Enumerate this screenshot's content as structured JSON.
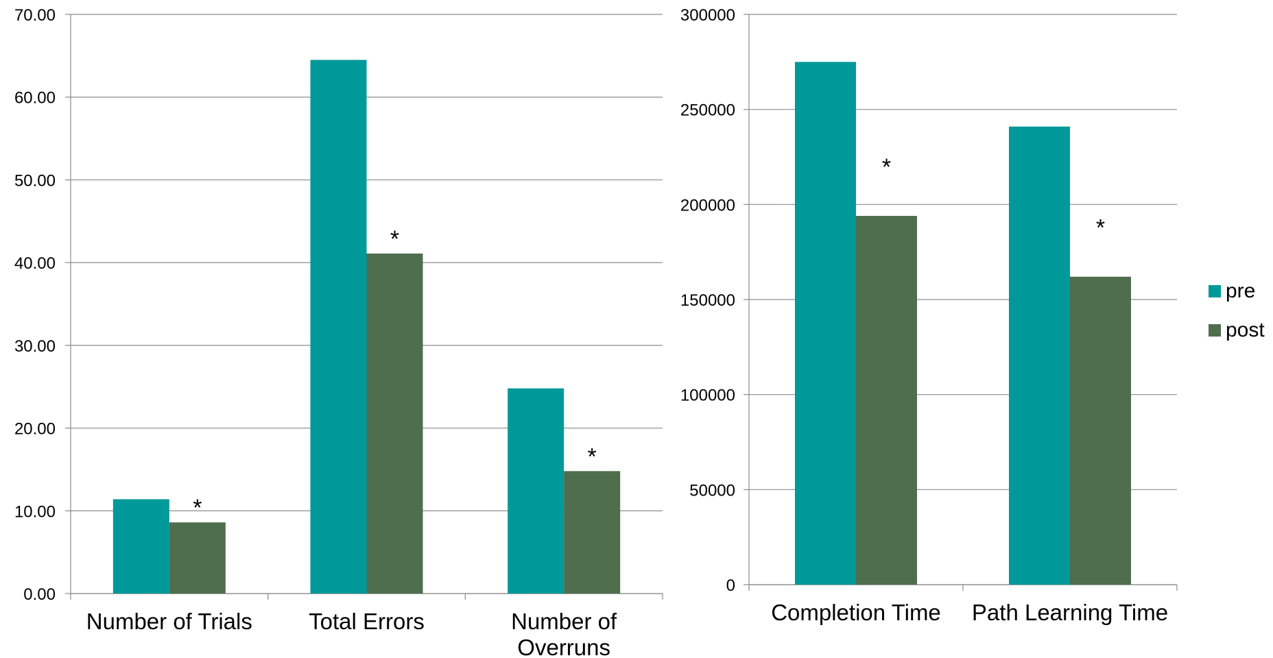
{
  "legend": {
    "position": "right",
    "items": [
      {
        "name": "pre",
        "color": "#009999"
      },
      {
        "name": "post",
        "color": "#4E6E4E"
      }
    ]
  },
  "chart_data": [
    {
      "type": "bar",
      "title": "",
      "xlabel": "",
      "ylabel": "",
      "ylim": [
        0,
        70
      ],
      "yticks": [
        0,
        10,
        20,
        30,
        40,
        50,
        60,
        70
      ],
      "ytick_labels": [
        "0.00",
        "10.00",
        "20.00",
        "30.00",
        "40.00",
        "50.00",
        "60.00",
        "70.00"
      ],
      "grid": true,
      "categories": [
        "Number of Trials",
        "Total Errors",
        "Number of Overruns"
      ],
      "category_lines": [
        [
          "Number of Trials"
        ],
        [
          "Total Errors"
        ],
        [
          "Number of",
          "Overruns"
        ]
      ],
      "series": [
        {
          "name": "pre",
          "color": "#009999",
          "values": [
            11.4,
            64.5,
            24.8
          ]
        },
        {
          "name": "post",
          "color": "#4E6E4E",
          "values": [
            8.6,
            41.1,
            14.8
          ]
        }
      ],
      "annotations": [
        {
          "text": "*",
          "category": "Number of Trials",
          "series": "post"
        },
        {
          "text": "*",
          "category": "Total Errors",
          "series": "post"
        },
        {
          "text": "*",
          "category": "Number of Overruns",
          "series": "post"
        }
      ]
    },
    {
      "type": "bar",
      "title": "",
      "xlabel": "",
      "ylabel": "",
      "ylim": [
        0,
        300000
      ],
      "yticks": [
        0,
        50000,
        100000,
        150000,
        200000,
        250000,
        300000
      ],
      "ytick_labels": [
        "0",
        "50000",
        "100000",
        "150000",
        "200000",
        "250000",
        "300000"
      ],
      "grid": true,
      "categories": [
        "Completion Time",
        "Path Learning Time"
      ],
      "category_lines": [
        [
          "Completion Time"
        ],
        [
          "Path Learning Time"
        ]
      ],
      "series": [
        {
          "name": "pre",
          "color": "#009999",
          "values": [
            275000,
            241000
          ]
        },
        {
          "name": "post",
          "color": "#4E6E4E",
          "values": [
            194000,
            162000
          ]
        }
      ],
      "annotations": [
        {
          "text": "*",
          "category": "Completion Time",
          "series": "post"
        },
        {
          "text": "*",
          "category": "Path Learning Time",
          "series": "post"
        }
      ]
    }
  ]
}
